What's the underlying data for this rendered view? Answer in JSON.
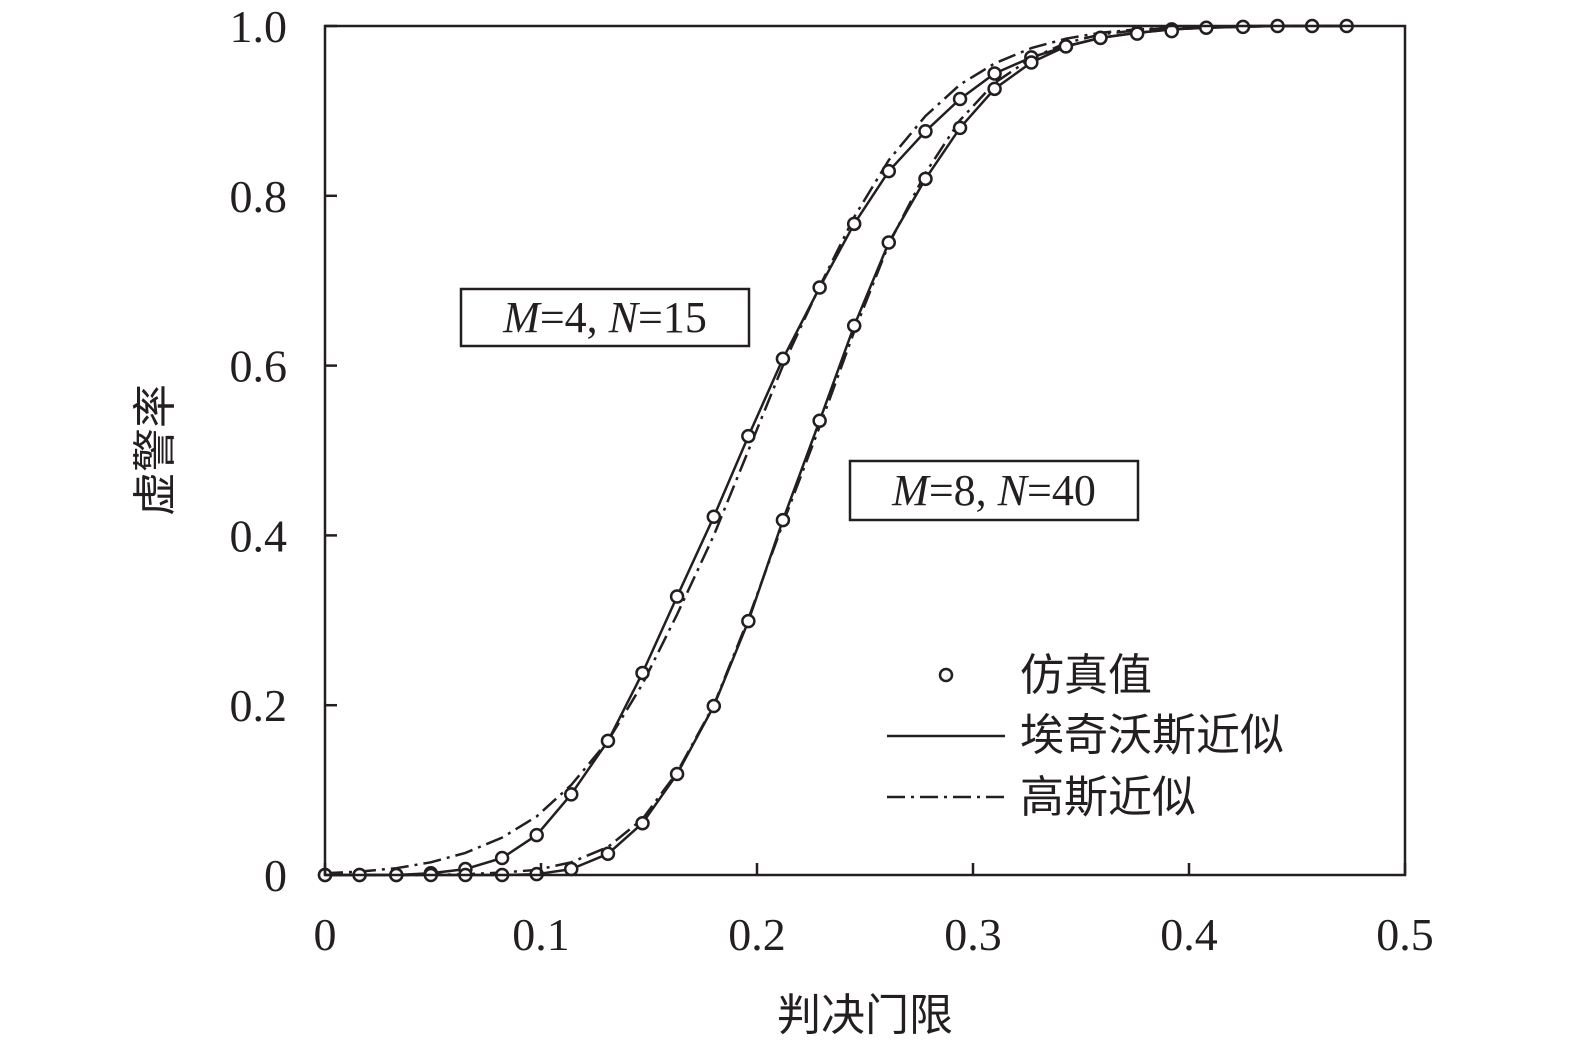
{
  "chart_data": {
    "type": "line",
    "xlabel": "判决门限",
    "ylabel": "虚警率",
    "xlim": [
      0,
      0.5
    ],
    "ylim": [
      0,
      1.0
    ],
    "x_ticks": [
      "0",
      "0.1",
      "0.2",
      "0.3",
      "0.4",
      "0.5"
    ],
    "y_ticks": [
      "0",
      "0.2",
      "0.4",
      "0.6",
      "0.8",
      "1.0"
    ],
    "grid": false,
    "legend_position": "bottom-right",
    "legend": [
      {
        "label": "仿真值",
        "style": "circle-marker"
      },
      {
        "label": "埃奇沃斯近似",
        "style": "solid"
      },
      {
        "label": "高斯近似",
        "style": "dash-dot"
      }
    ],
    "annotations": [
      {
        "parts": [
          {
            "t": "M",
            "i": true
          },
          {
            "t": "=4, ",
            "i": false
          },
          {
            "t": "N",
            "i": true
          },
          {
            "t": "=15",
            "i": false
          }
        ],
        "curve": "M=4, N=15"
      },
      {
        "parts": [
          {
            "t": "M",
            "i": true
          },
          {
            "t": "=8, ",
            "i": false
          },
          {
            "t": "N",
            "i": true
          },
          {
            "t": "=40",
            "i": false
          }
        ],
        "curve": "M=8, N=40"
      }
    ],
    "series": [
      {
        "group": "M=4, N=15",
        "kind": "仿真值",
        "x": [
          0,
          0.016,
          0.033,
          0.049,
          0.065,
          0.082,
          0.098,
          0.114,
          0.131,
          0.147,
          0.163,
          0.18,
          0.196,
          0.212,
          0.229,
          0.245,
          0.261,
          0.278,
          0.294,
          0.31,
          0.327,
          0.343,
          0.359,
          0.376,
          0.392,
          0.408,
          0.425,
          0.441,
          0.457,
          0.473
        ],
        "y": [
          0.0,
          0.0,
          0.0,
          0.002,
          0.007,
          0.02,
          0.047,
          0.095,
          0.158,
          0.238,
          0.328,
          0.422,
          0.517,
          0.608,
          0.692,
          0.767,
          0.829,
          0.876,
          0.914,
          0.944,
          0.963,
          0.976,
          0.986,
          0.992,
          0.996,
          0.998,
          0.999,
          1.0,
          1.0,
          1.0
        ]
      },
      {
        "group": "M=4, N=15",
        "kind": "埃奇沃斯近似",
        "x": [
          0,
          0.016,
          0.033,
          0.049,
          0.065,
          0.082,
          0.098,
          0.114,
          0.131,
          0.147,
          0.163,
          0.18,
          0.196,
          0.212,
          0.229,
          0.245,
          0.261,
          0.278,
          0.294,
          0.31,
          0.327,
          0.343,
          0.359,
          0.376,
          0.392,
          0.408,
          0.425,
          0.441,
          0.457,
          0.473
        ],
        "y": [
          0.0,
          0.0,
          0.0,
          0.002,
          0.007,
          0.02,
          0.047,
          0.095,
          0.158,
          0.238,
          0.328,
          0.422,
          0.517,
          0.608,
          0.692,
          0.767,
          0.829,
          0.876,
          0.914,
          0.944,
          0.963,
          0.976,
          0.986,
          0.992,
          0.996,
          0.998,
          0.999,
          1.0,
          1.0,
          1.0
        ]
      },
      {
        "group": "M=4, N=15",
        "kind": "高斯近似",
        "x": [
          0,
          0.016,
          0.033,
          0.049,
          0.065,
          0.082,
          0.098,
          0.114,
          0.131,
          0.147,
          0.163,
          0.18,
          0.196,
          0.212,
          0.229,
          0.245,
          0.261,
          0.278,
          0.294,
          0.31,
          0.327,
          0.343,
          0.359,
          0.376,
          0.392,
          0.408,
          0.425,
          0.441,
          0.457,
          0.473
        ],
        "y": [
          0.002,
          0.004,
          0.008,
          0.015,
          0.026,
          0.044,
          0.069,
          0.106,
          0.158,
          0.225,
          0.307,
          0.4,
          0.5,
          0.6,
          0.693,
          0.775,
          0.842,
          0.894,
          0.931,
          0.956,
          0.974,
          0.985,
          0.992,
          0.996,
          0.998,
          0.999,
          1.0,
          1.0,
          1.0,
          1.0
        ]
      },
      {
        "group": "M=8, N=40",
        "kind": "仿真值",
        "x": [
          0,
          0.016,
          0.033,
          0.049,
          0.065,
          0.082,
          0.098,
          0.114,
          0.131,
          0.147,
          0.163,
          0.18,
          0.196,
          0.212,
          0.229,
          0.245,
          0.261,
          0.278,
          0.294,
          0.31,
          0.327,
          0.343,
          0.359,
          0.376,
          0.392
        ],
        "y": [
          0.0,
          0.0,
          0.0,
          0.0,
          0.0,
          0.0,
          0.001,
          0.007,
          0.025,
          0.061,
          0.119,
          0.199,
          0.299,
          0.418,
          0.535,
          0.647,
          0.745,
          0.82,
          0.88,
          0.926,
          0.957,
          0.976,
          0.986,
          0.991,
          0.994
        ]
      },
      {
        "group": "M=8, N=40",
        "kind": "埃奇沃斯近似",
        "x": [
          0,
          0.016,
          0.033,
          0.049,
          0.065,
          0.082,
          0.098,
          0.114,
          0.131,
          0.147,
          0.163,
          0.18,
          0.196,
          0.212,
          0.229,
          0.245,
          0.261,
          0.278,
          0.294,
          0.31,
          0.327,
          0.343,
          0.359,
          0.376,
          0.392,
          0.408,
          0.425,
          0.441,
          0.457,
          0.473
        ],
        "y": [
          0.0,
          0.0,
          0.0,
          0.0,
          0.0,
          0.0,
          0.001,
          0.007,
          0.025,
          0.061,
          0.119,
          0.199,
          0.299,
          0.418,
          0.535,
          0.647,
          0.745,
          0.82,
          0.88,
          0.926,
          0.957,
          0.976,
          0.986,
          0.992,
          0.996,
          0.998,
          0.999,
          1.0,
          1.0,
          1.0
        ]
      },
      {
        "group": "M=8, N=40",
        "kind": "高斯近似",
        "x": [
          0,
          0.016,
          0.033,
          0.049,
          0.065,
          0.082,
          0.098,
          0.114,
          0.131,
          0.147,
          0.163,
          0.18,
          0.196,
          0.212,
          0.229,
          0.245,
          0.261,
          0.278,
          0.294,
          0.31,
          0.327,
          0.343,
          0.359,
          0.376,
          0.392,
          0.408,
          0.425,
          0.441,
          0.457,
          0.473
        ],
        "y": [
          0.0,
          0.0,
          0.0,
          0.0,
          0.001,
          0.003,
          0.006,
          0.015,
          0.033,
          0.066,
          0.121,
          0.2,
          0.302,
          0.414,
          0.528,
          0.64,
          0.743,
          0.827,
          0.889,
          0.933,
          0.962,
          0.98,
          0.99,
          0.995,
          0.998,
          0.999,
          1.0,
          1.0,
          1.0,
          1.0
        ]
      }
    ]
  }
}
